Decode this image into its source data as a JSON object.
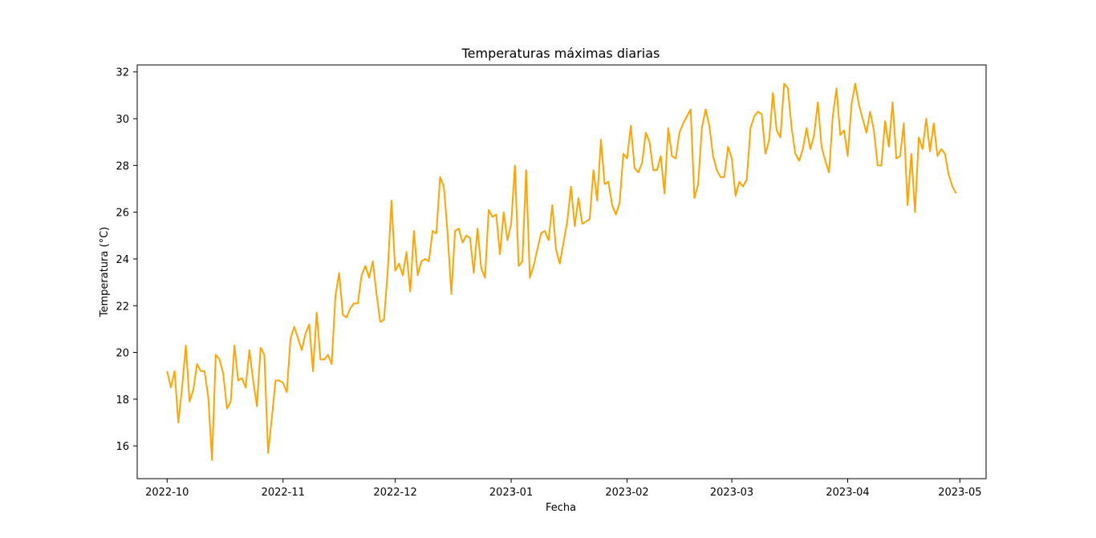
{
  "chart_data": {
    "type": "line",
    "title": "Temperaturas máximas diarias",
    "xlabel": "Fecha",
    "ylabel": "Temperatura (°C)",
    "x_ticks": [
      "2022-10",
      "2022-11",
      "2022-12",
      "2023-01",
      "2023-02",
      "2023-03",
      "2023-04",
      "2023-05"
    ],
    "y_ticks": [
      16,
      18,
      20,
      22,
      24,
      26,
      28,
      30,
      32
    ],
    "xlim": [
      "2022-09-23",
      "2023-05-08"
    ],
    "ylim": [
      14.6,
      32.3
    ],
    "grid": false,
    "legend": "none",
    "line_color": "#FFA500",
    "series": [
      {
        "start_date": "2022-10-01",
        "step_days": 1,
        "values": [
          19.2,
          18.5,
          19.2,
          17.0,
          18.5,
          20.3,
          17.9,
          18.4,
          19.5,
          19.2,
          19.2,
          18.1,
          15.4,
          19.9,
          19.7,
          19.1,
          17.6,
          17.9,
          20.3,
          18.8,
          18.9,
          18.5,
          20.1,
          18.8,
          17.7,
          20.2,
          19.9,
          15.7,
          17.2,
          18.8,
          18.8,
          18.7,
          18.3,
          20.6,
          21.1,
          20.6,
          20.1,
          20.8,
          21.2,
          19.2,
          21.7,
          19.7,
          19.7,
          19.9,
          19.5,
          22.4,
          23.4,
          21.6,
          21.5,
          21.9,
          22.1,
          22.1,
          23.3,
          23.7,
          23.2,
          23.9,
          22.5,
          21.3,
          21.4,
          23.5,
          26.5,
          23.5,
          23.8,
          23.3,
          24.3,
          22.6,
          25.2,
          23.3,
          23.9,
          24.0,
          23.9,
          25.2,
          25.1,
          27.5,
          27.1,
          25.1,
          22.5,
          25.2,
          25.3,
          24.7,
          25.0,
          24.9,
          23.4,
          25.3,
          23.6,
          23.2,
          26.1,
          25.8,
          25.9,
          24.2,
          26.0,
          24.8,
          25.5,
          28.0,
          23.7,
          23.9,
          27.8,
          23.2,
          23.7,
          24.4,
          25.1,
          25.2,
          24.8,
          26.3,
          24.4,
          23.8,
          24.7,
          25.6,
          27.1,
          25.4,
          26.6,
          25.5,
          25.6,
          25.7,
          27.8,
          26.5,
          29.1,
          27.2,
          27.3,
          26.3,
          25.9,
          26.4,
          28.5,
          28.3,
          29.7,
          27.9,
          27.7,
          28.1,
          29.4,
          29.0,
          27.8,
          27.8,
          28.4,
          26.8,
          29.6,
          28.4,
          28.3,
          29.4,
          29.8,
          30.1,
          30.4,
          26.6,
          27.2,
          29.6,
          30.4,
          29.7,
          28.4,
          27.8,
          27.5,
          27.5,
          28.8,
          28.3,
          26.7,
          27.3,
          27.1,
          27.4,
          29.6,
          30.1,
          30.3,
          30.2,
          28.5,
          29.1,
          31.1,
          29.5,
          29.2,
          31.5,
          31.3,
          29.6,
          28.5,
          28.2,
          28.7,
          29.6,
          28.7,
          29.3,
          30.7,
          28.8,
          28.2,
          27.7,
          30.1,
          31.3,
          29.3,
          29.5,
          28.4,
          30.6,
          31.5,
          30.6,
          30.0,
          29.4,
          30.3,
          29.5,
          28.0,
          28.0,
          29.9,
          28.8,
          30.7,
          28.3,
          28.4,
          29.8,
          26.3,
          28.5,
          26.0,
          29.2,
          28.7,
          30.0,
          28.6,
          29.8,
          28.4,
          28.7,
          28.5,
          27.6,
          27.1,
          26.8
        ]
      }
    ]
  }
}
